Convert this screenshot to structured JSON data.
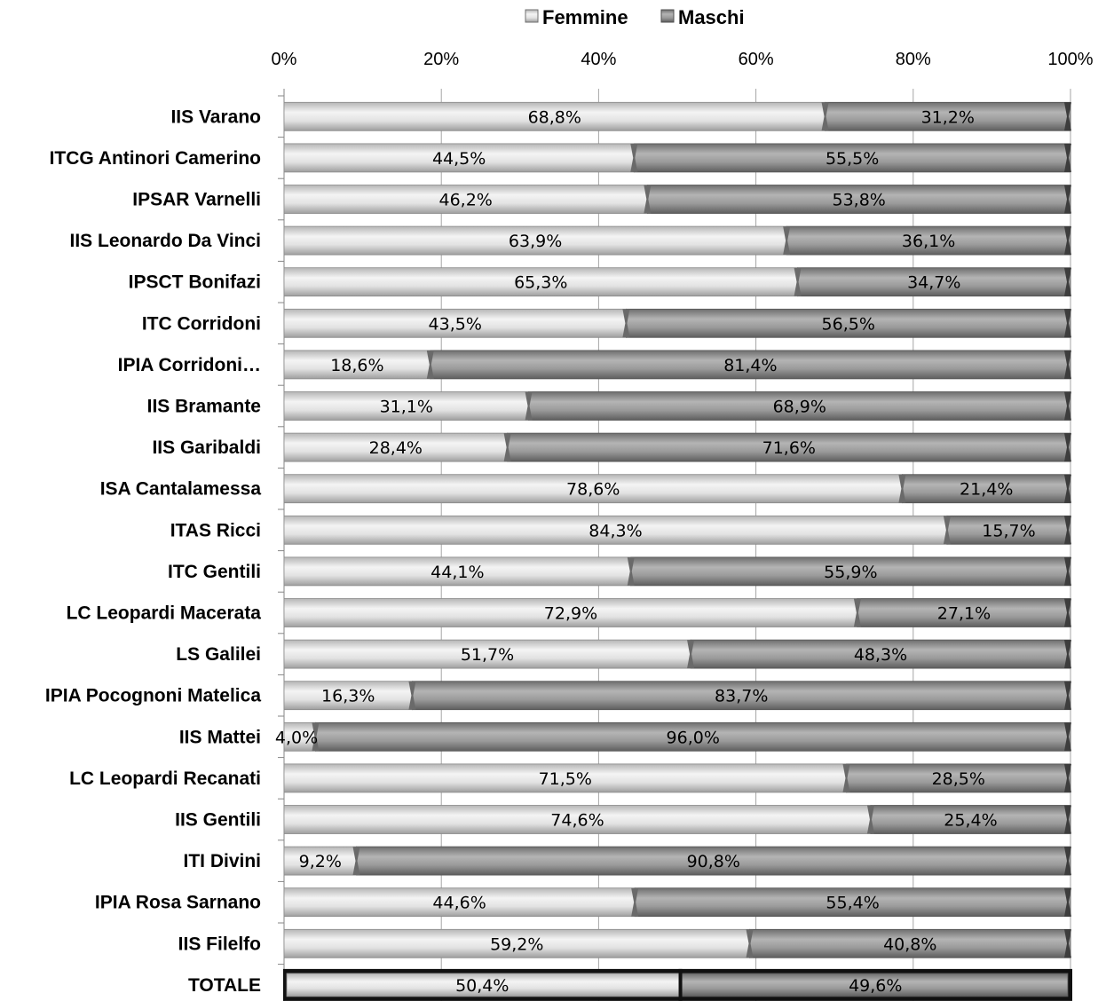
{
  "chart_data": {
    "type": "bar",
    "orientation": "horizontal",
    "stacked": "percent",
    "categories": [
      "IIS Varano",
      "ITCG Antinori Camerino",
      "IPSAR Varnelli",
      "IIS Leonardo Da Vinci",
      "IPSCT Bonifazi",
      "ITC Corridoni",
      "IPIA Corridoni…",
      "IIS Bramante",
      "IIS Garibaldi",
      "ISA Cantalamessa",
      "ITAS Ricci",
      "ITC Gentili",
      "LC Leopardi Macerata",
      "LS Galilei",
      "IPIA Pocognoni Matelica",
      "IIS Mattei",
      "LC Leopardi Recanati",
      "IIS Gentili",
      "ITI Divini",
      "IPIA Rosa Sarnano",
      "IIS Filelfo",
      "TOTALE"
    ],
    "series": [
      {
        "name": "Femmine",
        "color": "#d4d4d4",
        "values": [
          68.8,
          44.5,
          46.2,
          63.9,
          65.3,
          43.5,
          18.6,
          31.1,
          28.4,
          78.6,
          84.3,
          44.1,
          72.9,
          51.7,
          16.3,
          4.0,
          71.5,
          74.6,
          9.2,
          44.6,
          59.2,
          50.4
        ],
        "labels": [
          "68,8%",
          "44,5%",
          "46,2%",
          "63,9%",
          "65,3%",
          "43,5%",
          "18,6%",
          "31,1%",
          "28,4%",
          "78,6%",
          "84,3%",
          "44,1%",
          "72,9%",
          "51,7%",
          "16,3%",
          "4,0%",
          "71,5%",
          "74,6%",
          "9,2%",
          "44,6%",
          "59,2%",
          "50,4%"
        ]
      },
      {
        "name": "Maschi",
        "color": "#8c8c8c",
        "values": [
          31.2,
          55.5,
          53.8,
          36.1,
          34.7,
          56.5,
          81.4,
          68.9,
          71.6,
          21.4,
          15.7,
          55.9,
          27.1,
          48.3,
          83.7,
          96.0,
          28.5,
          25.4,
          90.8,
          55.4,
          40.8,
          49.6
        ],
        "labels": [
          "31,2%",
          "55,5%",
          "53,8%",
          "36,1%",
          "34,7%",
          "56,5%",
          "81,4%",
          "68,9%",
          "71,6%",
          "21,4%",
          "15,7%",
          "55,9%",
          "27,1%",
          "48,3%",
          "83,7%",
          "96,0%",
          "28,5%",
          "25,4%",
          "90,8%",
          "55,4%",
          "40,8%",
          "49,6%"
        ]
      }
    ],
    "xlim": [
      0,
      100
    ],
    "x_ticks": [
      "0%",
      "20%",
      "40%",
      "60%",
      "80%",
      "100%"
    ],
    "x_axis_position": "top",
    "grid": true,
    "legend": {
      "position": "top",
      "entries": [
        "Femmine",
        "Maschi"
      ]
    },
    "highlighted_category": "TOTALE",
    "title": "",
    "xlabel": "",
    "ylabel": ""
  }
}
